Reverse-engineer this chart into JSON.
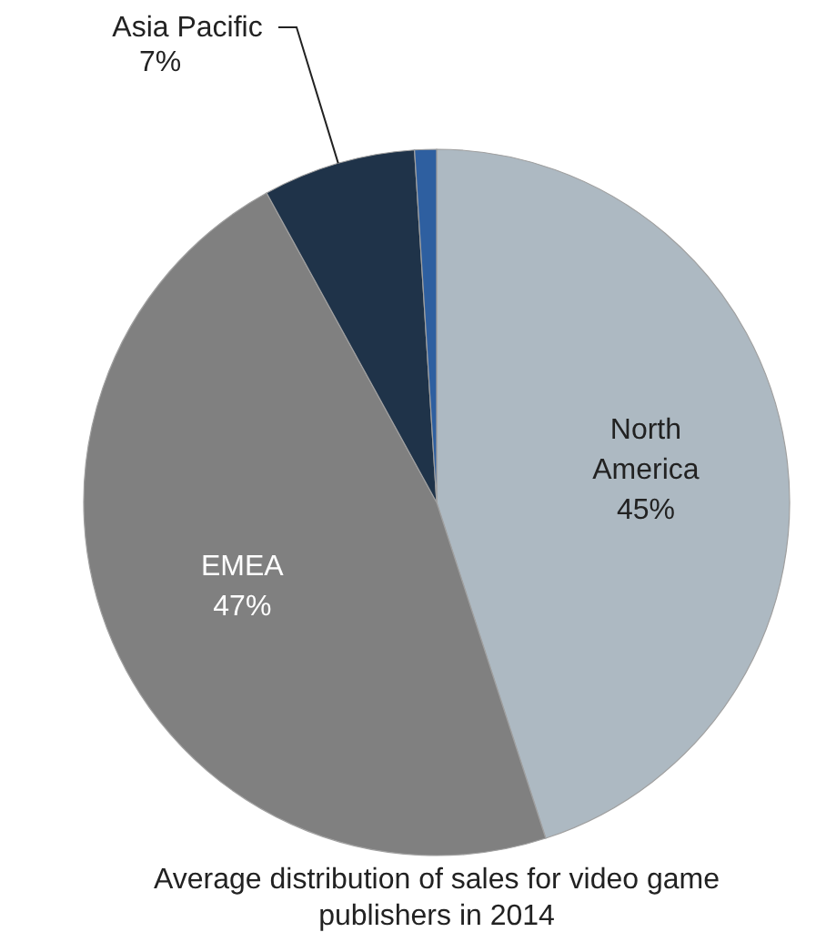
{
  "chart_data": {
    "type": "pie",
    "title": "Average distribution of sales for video game publishers in 2014",
    "categories": [
      "North America",
      "EMEA",
      "Asia Pacific",
      null
    ],
    "values": [
      45,
      47,
      7,
      1
    ],
    "value_labels": [
      "45%",
      "47%",
      "7%",
      null
    ],
    "colors": [
      "#adb9c2",
      "#808080",
      "#1f3349",
      "#2e5fa0"
    ]
  }
}
